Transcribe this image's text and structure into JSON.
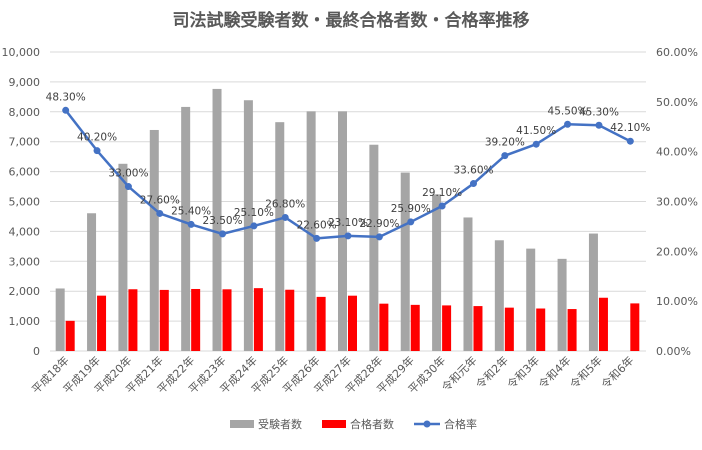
{
  "chart_data": {
    "type": "bar+line",
    "title": "司法試験受験者数・最終合格者数・合格率推移",
    "categories": [
      "平成18年",
      "平成19年",
      "平成20年",
      "平成21年",
      "平成22年",
      "平成23年",
      "平成24年",
      "平成25年",
      "平成26年",
      "平成27年",
      "平成28年",
      "平成29年",
      "平成30年",
      "令和元年",
      "令和2年",
      "令和3年",
      "令和4年",
      "令和5年",
      "令和6年"
    ],
    "series": [
      {
        "name": "受験者数",
        "type": "bar",
        "axis": "left",
        "color": "#a5a5a5",
        "values": [
          2091,
          4607,
          6261,
          7392,
          8163,
          8765,
          8387,
          7653,
          8015,
          8016,
          6899,
          5967,
          5238,
          4466,
          3703,
          3424,
          3082,
          3928,
          null
        ]
      },
      {
        "name": "合格者数",
        "type": "bar",
        "axis": "left",
        "color": "#ff0000",
        "values": [
          1009,
          1851,
          2065,
          2043,
          2074,
          2063,
          2102,
          2049,
          1810,
          1850,
          1583,
          1543,
          1525,
          1502,
          1450,
          1421,
          1403,
          1781,
          1592
        ]
      },
      {
        "name": "合格率",
        "type": "line",
        "axis": "right",
        "color": "#4472c4",
        "values": [
          48.3,
          40.2,
          33.0,
          27.6,
          25.4,
          23.5,
          25.1,
          26.8,
          22.6,
          23.1,
          22.9,
          25.9,
          29.1,
          33.6,
          39.2,
          41.5,
          45.5,
          45.3,
          42.1
        ],
        "labels": [
          "48.30%",
          "40.20%",
          "33.00%",
          "27.60%",
          "25.40%",
          "23.50%",
          "25.10%",
          "26.80%",
          "22.60%",
          "23.10%",
          "22.90%",
          "25.90%",
          "29.10%",
          "33.60%",
          "39.20%",
          "41.50%",
          "45.50%",
          "45.30%",
          "42.10%"
        ]
      }
    ],
    "left_axis": {
      "ylim": [
        0,
        10000
      ],
      "ticks": [
        "0",
        "1,000",
        "2,000",
        "3,000",
        "4,000",
        "5,000",
        "6,000",
        "7,000",
        "8,000",
        "9,000",
        "10,000"
      ]
    },
    "right_axis": {
      "ylim": [
        0,
        60
      ],
      "ticks": [
        "0.00%",
        "10.00%",
        "20.00%",
        "30.00%",
        "40.00%",
        "50.00%",
        "60.00%"
      ]
    },
    "grid": true,
    "legend": "bottom"
  }
}
